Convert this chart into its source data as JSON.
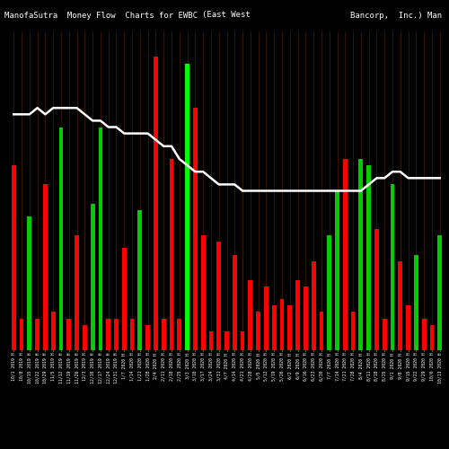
{
  "title_left": "ManofaSutra  Money Flow  Charts for EWBC",
  "title_mid": "(East West",
  "title_right": "Bancorp,  Inc.) Man",
  "background_color": "#000000",
  "n_bars": 55,
  "xlabels": [
    "10/1 2019 H",
    "10/8 2019 H",
    "10/15 2019 H",
    "10/22 2019 H",
    "10/29 2019 H",
    "11/5 2019 H",
    "11/12 2019 H",
    "11/19 2019 H",
    "11/26 2019 H",
    "12/3 2019 H",
    "12/10 2019 H",
    "12/17 2019 H",
    "12/24 2019 H",
    "12/31 2019 H",
    "1/7 2020 H",
    "1/14 2020 H",
    "1/21 2020 H",
    "1/28 2020 H",
    "2/4 2020 H",
    "2/11 2020 H",
    "2/18 2020 H",
    "2/25 2020 H",
    "3/3 2020 H",
    "3/10 2020 H",
    "3/17 2020 H",
    "3/24 2020 H",
    "3/31 2020 H",
    "4/7 2020 H",
    "4/14 2020 H",
    "4/21 2020 H",
    "4/28 2020 H",
    "5/5 2020 H",
    "5/12 2020 H",
    "5/19 2020 H",
    "5/26 2020 H",
    "6/2 2020 H",
    "6/9 2020 H",
    "6/16 2020 H",
    "6/23 2020 H",
    "6/30 2020 H",
    "7/7 2020 H",
    "7/14 2020 H",
    "7/21 2020 H",
    "7/28 2020 H",
    "8/4 2020 H",
    "8/11 2020 H",
    "8/18 2020 H",
    "8/25 2020 H",
    "9/1 2020 H",
    "9/8 2020 H",
    "9/15 2020 H",
    "9/22 2020 H",
    "9/29 2020 H",
    "10/6 2020 H",
    "10/13 2020 H"
  ],
  "bar_heights": [
    0.58,
    0.1,
    0.42,
    0.1,
    0.52,
    0.12,
    0.7,
    0.1,
    0.36,
    0.08,
    0.46,
    0.7,
    0.1,
    0.1,
    0.32,
    0.1,
    0.44,
    0.08,
    0.92,
    0.1,
    0.6,
    0.1,
    0.9,
    0.76,
    0.36,
    0.06,
    0.34,
    0.06,
    0.3,
    0.06,
    0.22,
    0.12,
    0.2,
    0.14,
    0.16,
    0.14,
    0.22,
    0.2,
    0.28,
    0.12,
    0.36,
    0.5,
    0.6,
    0.12,
    0.6,
    0.58,
    0.38,
    0.1,
    0.52,
    0.28,
    0.14,
    0.3,
    0.1,
    0.08,
    0.36
  ],
  "bar_colors": [
    "#ff0000",
    "#ff0000",
    "#00cc00",
    "#ff0000",
    "#ff0000",
    "#ff0000",
    "#00cc00",
    "#ff0000",
    "#ff0000",
    "#ff0000",
    "#00cc00",
    "#00cc00",
    "#ff0000",
    "#ff0000",
    "#ff0000",
    "#ff0000",
    "#00cc00",
    "#ff0000",
    "#ff0000",
    "#ff0000",
    "#ff0000",
    "#ff0000",
    "#00ff00",
    "#ff0000",
    "#ff0000",
    "#ff0000",
    "#ff0000",
    "#ff0000",
    "#ff0000",
    "#ff0000",
    "#ff0000",
    "#ff0000",
    "#ff0000",
    "#ff0000",
    "#ff0000",
    "#ff0000",
    "#ff0000",
    "#ff0000",
    "#ff0000",
    "#ff0000",
    "#00cc00",
    "#00cc00",
    "#ff0000",
    "#ff0000",
    "#00cc00",
    "#00cc00",
    "#ff0000",
    "#ff0000",
    "#00cc00",
    "#ff0000",
    "#ff0000",
    "#00cc00",
    "#ff0000",
    "#ff0000",
    "#00cc00"
  ],
  "gridline_color": "#3a1a00",
  "line_values": [
    0.74,
    0.74,
    0.74,
    0.76,
    0.74,
    0.76,
    0.76,
    0.76,
    0.76,
    0.74,
    0.72,
    0.72,
    0.7,
    0.7,
    0.68,
    0.68,
    0.68,
    0.68,
    0.66,
    0.64,
    0.64,
    0.6,
    0.58,
    0.56,
    0.56,
    0.54,
    0.52,
    0.52,
    0.52,
    0.5,
    0.5,
    0.5,
    0.5,
    0.5,
    0.5,
    0.5,
    0.5,
    0.5,
    0.5,
    0.5,
    0.5,
    0.5,
    0.5,
    0.5,
    0.5,
    0.52,
    0.54,
    0.54,
    0.56,
    0.56,
    0.54,
    0.54,
    0.54,
    0.54,
    0.54
  ],
  "special_bar_index": 22,
  "special_bar_color": "#00ff00",
  "text_color": "#ffffff",
  "title_fontsize": 6.5,
  "tick_fontsize": 3.5,
  "line_color": "#ffffff",
  "line_width": 1.8,
  "ylim": [
    0,
    1.0
  ],
  "figsize": [
    5.0,
    5.0
  ],
  "dpi": 100
}
